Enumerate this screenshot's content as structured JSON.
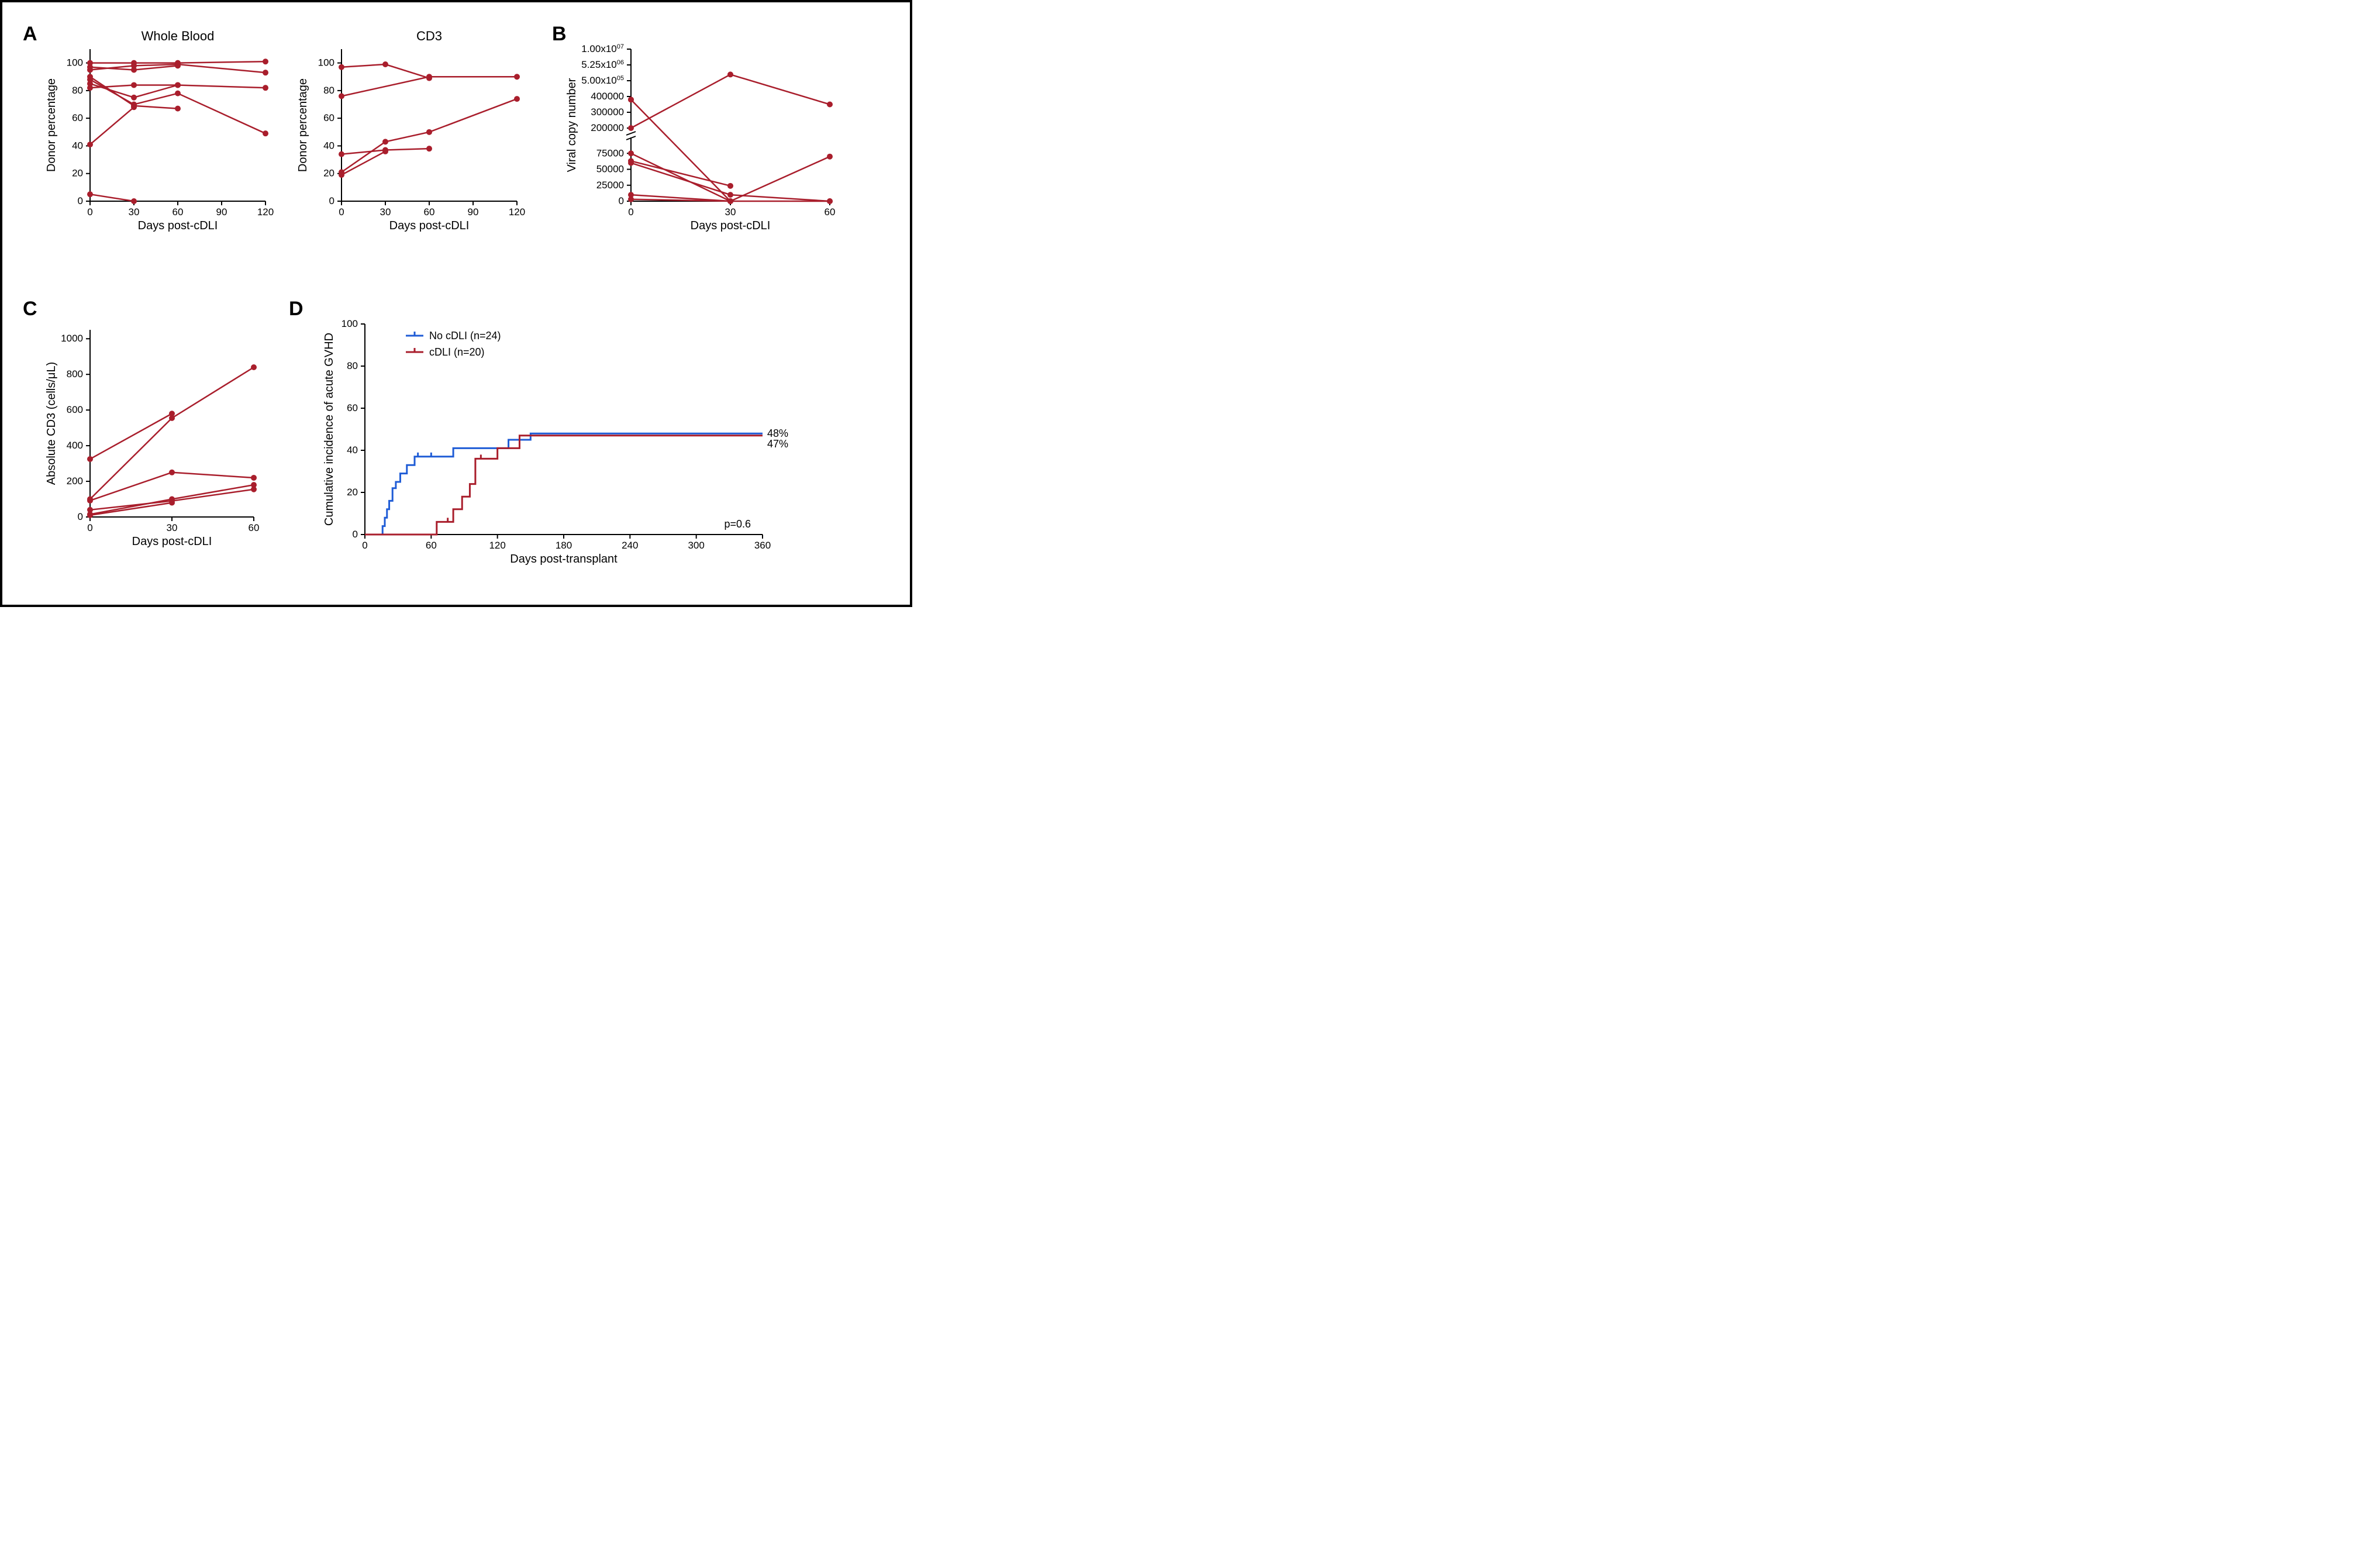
{
  "colors": {
    "dark_red": "#a91e2c",
    "blue": "#1f5cd6",
    "axis": "#000000",
    "bg": "#ffffff",
    "text": "#000000"
  },
  "typography": {
    "panel_label_fontsize": 34,
    "axis_label_fontsize": 20,
    "tick_fontsize": 17,
    "title_fontsize": 22,
    "legend_fontsize": 18
  },
  "line_width": 2.5,
  "marker_radius": 5,
  "panels": {
    "A": {
      "label": "A",
      "wholeblood": {
        "type": "line",
        "title": "Whole Blood",
        "xlabel": "Days post-cDLI",
        "ylabel": "Donor percentage",
        "xlim": [
          0,
          120
        ],
        "xticks": [
          0,
          30,
          60,
          90,
          120
        ],
        "ylim": [
          0,
          110
        ],
        "yticks": [
          0,
          20,
          40,
          60,
          80,
          100
        ],
        "series": [
          [
            [
              0,
              100
            ],
            [
              30,
              100
            ],
            [
              60,
              100
            ],
            [
              120,
              101
            ]
          ],
          [
            [
              0,
              97
            ],
            [
              30,
              95
            ],
            [
              60,
              98
            ]
          ],
          [
            [
              0,
              95
            ],
            [
              30,
              98
            ],
            [
              60,
              99
            ],
            [
              120,
              93
            ]
          ],
          [
            [
              0,
              90
            ],
            [
              30,
              69
            ],
            [
              60,
              67
            ]
          ],
          [
            [
              0,
              88
            ],
            [
              30,
              70
            ],
            [
              60,
              78
            ],
            [
              120,
              49
            ]
          ],
          [
            [
              0,
              85
            ],
            [
              30,
              75
            ],
            [
              60,
              84
            ],
            [
              120,
              82
            ]
          ],
          [
            [
              0,
              82
            ],
            [
              30,
              84
            ],
            [
              60,
              84
            ]
          ],
          [
            [
              0,
              41
            ],
            [
              30,
              68
            ]
          ],
          [
            [
              0,
              5
            ],
            [
              30,
              0
            ]
          ]
        ]
      },
      "cd3": {
        "type": "line",
        "title": "CD3",
        "xlabel": "Days post-cDLI",
        "ylabel": "Donor percentage",
        "xlim": [
          0,
          120
        ],
        "xticks": [
          0,
          30,
          60,
          90,
          120
        ],
        "ylim": [
          0,
          110
        ],
        "yticks": [
          0,
          20,
          40,
          60,
          80,
          100
        ],
        "series": [
          [
            [
              0,
              97
            ],
            [
              30,
              99
            ],
            [
              60,
              89
            ]
          ],
          [
            [
              0,
              76
            ],
            [
              60,
              90
            ],
            [
              120,
              90
            ]
          ],
          [
            [
              0,
              34
            ],
            [
              30,
              37
            ],
            [
              60,
              38
            ]
          ],
          [
            [
              0,
              21
            ],
            [
              30,
              43
            ],
            [
              60,
              50
            ],
            [
              120,
              74
            ]
          ],
          [
            [
              0,
              19
            ],
            [
              30,
              36
            ]
          ]
        ]
      }
    },
    "B": {
      "label": "B",
      "viral": {
        "type": "line",
        "xlabel": "Days post-cDLI",
        "ylabel": "Viral copy number",
        "xlim": [
          0,
          60
        ],
        "xticks": [
          0,
          30,
          60
        ],
        "lower_ylim": [
          0,
          100000
        ],
        "lower_ticks": [
          0,
          25000,
          50000,
          75000
        ],
        "upper_ticks": [
          "200000",
          "300000",
          "400000",
          "5.00x10",
          "5.25x10",
          "1.00x10"
        ],
        "upper_exp": [
          "",
          "",
          "",
          "05",
          "06",
          "07"
        ],
        "series_lower": [
          [
            [
              0,
              75000
            ],
            [
              30,
              0
            ],
            [
              60,
              70000
            ]
          ],
          [
            [
              0,
              63000
            ],
            [
              30,
              24000
            ]
          ],
          [
            [
              0,
              60000
            ],
            [
              30,
              10000
            ],
            [
              60,
              0
            ]
          ],
          [
            [
              0,
              10000
            ],
            [
              30,
              0
            ]
          ],
          [
            [
              0,
              3000
            ],
            [
              30,
              0
            ],
            [
              60,
              0
            ]
          ]
        ],
        "series_upper": [
          [
            [
              0,
              200000
            ],
            [
              30,
              900000
            ],
            [
              60,
              350000
            ]
          ],
          [
            [
              0,
              380000
            ]
          ]
        ],
        "bridge_series": [
          [
            [
              0,
              380000
            ],
            [
              30,
              0
            ]
          ]
        ]
      }
    },
    "C": {
      "label": "C",
      "cd3abs": {
        "type": "line",
        "xlabel": "Days post-cDLI",
        "ylabel": "Absolute CD3 (cells/μL)",
        "xlim": [
          0,
          60
        ],
        "xticks": [
          0,
          30,
          60
        ],
        "ylim": [
          0,
          1050
        ],
        "yticks": [
          0,
          200,
          400,
          600,
          800,
          1000
        ],
        "series": [
          [
            [
              0,
              325
            ],
            [
              30,
              580
            ]
          ],
          [
            [
              0,
              100
            ],
            [
              30,
              555
            ],
            [
              60,
              840
            ]
          ],
          [
            [
              0,
              92
            ],
            [
              30,
              250
            ],
            [
              60,
              220
            ]
          ],
          [
            [
              0,
              40
            ],
            [
              30,
              90
            ],
            [
              60,
              155
            ]
          ],
          [
            [
              0,
              15
            ],
            [
              30,
              100
            ],
            [
              60,
              180
            ]
          ],
          [
            [
              0,
              10
            ],
            [
              30,
              80
            ]
          ]
        ]
      }
    },
    "D": {
      "label": "D",
      "km": {
        "type": "step",
        "xlabel": "Days post-transplant",
        "ylabel": "Cumulative incidence of acute GVHD",
        "xlim": [
          0,
          360
        ],
        "xticks": [
          0,
          60,
          120,
          180,
          240,
          300,
          360
        ],
        "ylim": [
          0,
          100
        ],
        "yticks": [
          0,
          20,
          40,
          60,
          80,
          100
        ],
        "pvalue": "p=0.6",
        "legend": [
          {
            "label": "No cDLI (n=24)",
            "color": "#1f5cd6"
          },
          {
            "label": "cDLI (n=20)",
            "color": "#a91e2c"
          }
        ],
        "end_labels": [
          {
            "text": "48%",
            "y": 48,
            "color": "#000000"
          },
          {
            "text": "47%",
            "y": 43,
            "color": "#000000"
          }
        ],
        "no_cdli": {
          "steps": [
            [
              14,
              0
            ],
            [
              16,
              4
            ],
            [
              18,
              8
            ],
            [
              20,
              12
            ],
            [
              22,
              16
            ],
            [
              25,
              22
            ],
            [
              28,
              25
            ],
            [
              32,
              29
            ],
            [
              38,
              33
            ],
            [
              45,
              37
            ],
            [
              70,
              37
            ],
            [
              80,
              41
            ],
            [
              120,
              41
            ],
            [
              130,
              45
            ],
            [
              150,
              48
            ],
            [
              360,
              48
            ]
          ],
          "censor": [
            [
              48,
              37
            ],
            [
              60,
              37
            ]
          ]
        },
        "cdli": {
          "steps": [
            [
              60,
              0
            ],
            [
              65,
              6
            ],
            [
              72,
              6
            ],
            [
              80,
              12
            ],
            [
              88,
              18
            ],
            [
              95,
              24
            ],
            [
              100,
              36
            ],
            [
              112,
              36
            ],
            [
              120,
              41
            ],
            [
              132,
              41
            ],
            [
              140,
              47
            ],
            [
              360,
              47
            ]
          ],
          "censor": [
            [
              75,
              6
            ],
            [
              105,
              36
            ]
          ]
        }
      }
    }
  }
}
